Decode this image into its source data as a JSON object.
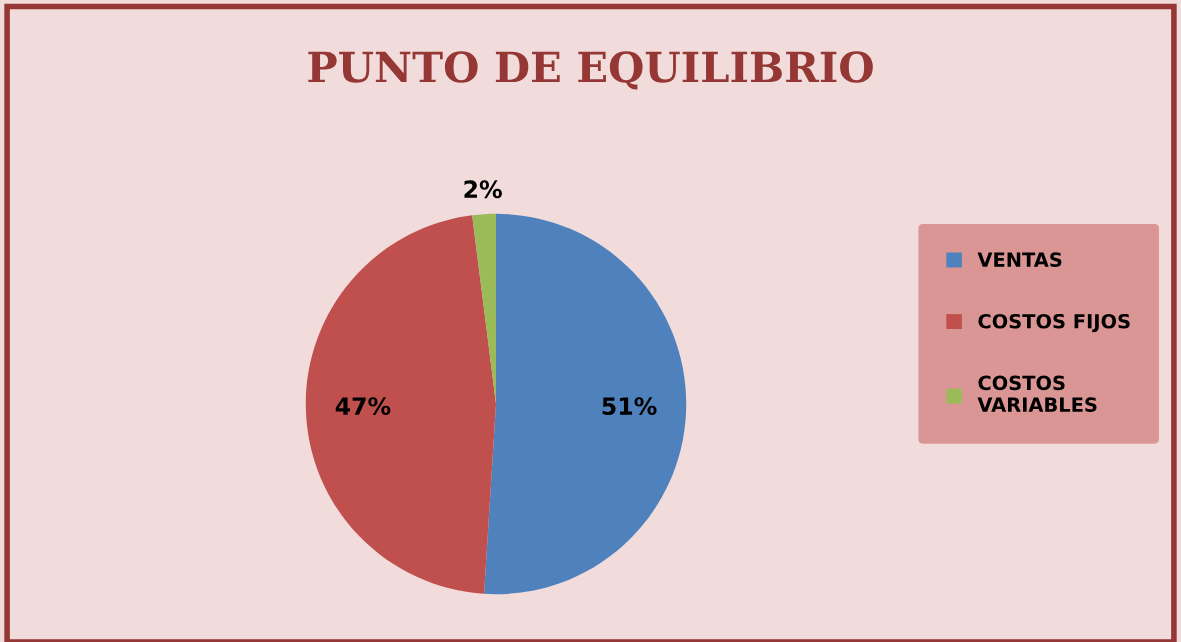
{
  "chart_data": {
    "type": "pie",
    "title": "PUNTO DE EQUILIBRIO",
    "categories": [
      "VENTAS",
      "COSTOS FIJOS",
      "COSTOS VARIABLES"
    ],
    "values": [
      51,
      47,
      2
    ],
    "colors": [
      "#4f81bd",
      "#c0504d",
      "#9bbb59"
    ],
    "value_labels": [
      "51%",
      "47%",
      "2%"
    ],
    "legend": "right"
  }
}
